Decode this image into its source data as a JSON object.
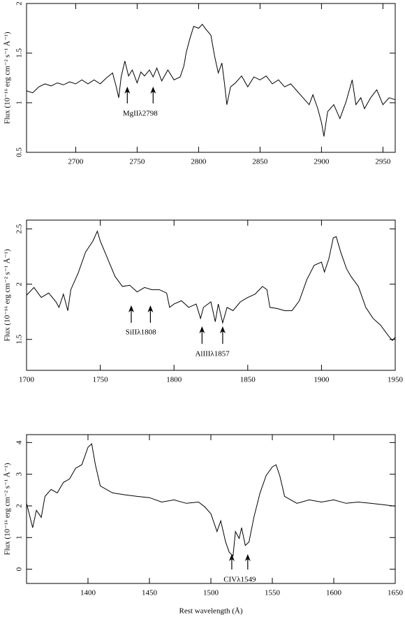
{
  "chart_data": [
    {
      "type": "line",
      "color": "#000000",
      "ylabel": "Flux (10⁻¹⁶ erg cm⁻² s⁻¹ Å⁻¹)",
      "xlim": [
        2660,
        2960
      ],
      "ylim": [
        0.5,
        2
      ],
      "xticks": [
        2700,
        2750,
        2800,
        2850,
        2900,
        2950
      ],
      "yticks": [
        0.5,
        1,
        1.5,
        2
      ],
      "x": [
        2660,
        2665,
        2670,
        2675,
        2680,
        2685,
        2690,
        2695,
        2700,
        2705,
        2710,
        2715,
        2720,
        2725,
        2730,
        2733,
        2735,
        2737,
        2740,
        2743,
        2746,
        2750,
        2753,
        2756,
        2760,
        2763,
        2766,
        2770,
        2775,
        2780,
        2785,
        2788,
        2790,
        2793,
        2796,
        2800,
        2803,
        2806,
        2810,
        2813,
        2816,
        2819,
        2821,
        2823,
        2826,
        2830,
        2835,
        2840,
        2845,
        2850,
        2855,
        2860,
        2865,
        2870,
        2875,
        2880,
        2885,
        2890,
        2893,
        2897,
        2900,
        2902,
        2905,
        2910,
        2915,
        2920,
        2925,
        2928,
        2932,
        2935,
        2940,
        2945,
        2950,
        2955,
        2960
      ],
      "values": [
        1.12,
        1.1,
        1.16,
        1.19,
        1.17,
        1.2,
        1.18,
        1.21,
        1.19,
        1.23,
        1.19,
        1.23,
        1.19,
        1.25,
        1.3,
        1.16,
        1.05,
        1.26,
        1.42,
        1.27,
        1.33,
        1.2,
        1.31,
        1.27,
        1.33,
        1.26,
        1.35,
        1.22,
        1.33,
        1.23,
        1.26,
        1.37,
        1.51,
        1.65,
        1.77,
        1.75,
        1.79,
        1.74,
        1.68,
        1.47,
        1.3,
        1.4,
        1.2,
        0.98,
        1.16,
        1.2,
        1.27,
        1.16,
        1.26,
        1.23,
        1.27,
        1.19,
        1.23,
        1.16,
        1.19,
        1.12,
        1.05,
        0.98,
        1.08,
        0.94,
        0.8,
        0.66,
        0.91,
        0.98,
        0.84,
        1.01,
        1.23,
        0.98,
        1.05,
        0.94,
        1.05,
        1.13,
        0.98,
        1.05,
        1.03
      ],
      "annotations": [
        {
          "text": "MgIIλ2798",
          "x": [
            2742,
            2763
          ]
        }
      ]
    },
    {
      "type": "line",
      "color": "#000000",
      "ylabel": "Flux (10⁻¹⁶ erg cm⁻² s⁻¹ Å⁻¹)",
      "xlim": [
        1700,
        1950
      ],
      "ylim": [
        1.22,
        2.58
      ],
      "xticks": [
        1700,
        1750,
        1800,
        1850,
        1900,
        1950
      ],
      "yticks": [
        1.5,
        2,
        2.5
      ],
      "x": [
        1700,
        1705,
        1710,
        1715,
        1720,
        1722,
        1725,
        1728,
        1730,
        1735,
        1740,
        1745,
        1748,
        1750,
        1755,
        1760,
        1765,
        1770,
        1775,
        1780,
        1785,
        1790,
        1795,
        1797,
        1800,
        1805,
        1810,
        1815,
        1818,
        1820,
        1825,
        1828,
        1830,
        1833,
        1836,
        1840,
        1845,
        1850,
        1855,
        1860,
        1863,
        1865,
        1870,
        1875,
        1880,
        1885,
        1890,
        1895,
        1900,
        1902,
        1905,
        1908,
        1910,
        1913,
        1917,
        1920,
        1925,
        1930,
        1935,
        1940,
        1945,
        1948,
        1950
      ],
      "values": [
        1.9,
        1.97,
        1.88,
        1.92,
        1.84,
        1.79,
        1.91,
        1.76,
        1.95,
        2.1,
        2.29,
        2.39,
        2.48,
        2.39,
        2.23,
        2.07,
        1.98,
        1.99,
        1.93,
        1.97,
        1.95,
        1.95,
        1.92,
        1.79,
        1.82,
        1.85,
        1.79,
        1.82,
        1.69,
        1.79,
        1.84,
        1.66,
        1.82,
        1.65,
        1.79,
        1.76,
        1.84,
        1.88,
        1.91,
        1.98,
        1.95,
        1.79,
        1.78,
        1.76,
        1.76,
        1.85,
        2.04,
        2.17,
        2.2,
        2.11,
        2.23,
        2.42,
        2.43,
        2.29,
        2.14,
        2.07,
        1.98,
        1.79,
        1.69,
        1.63,
        1.54,
        1.49,
        1.52
      ],
      "annotations": [
        {
          "text": "SiIIλ1808",
          "x": [
            1771,
            1784
          ]
        },
        {
          "text": "AlIIIλ1857",
          "x": [
            1819,
            1833
          ]
        }
      ]
    },
    {
      "type": "line",
      "color": "#000000",
      "ylabel": "Flux (10⁻¹⁶ erg cm⁻² s⁻¹ Å⁻¹)",
      "xlabel": "Rest wavelength (Å)",
      "xlim": [
        1350,
        1650
      ],
      "ylim": [
        -0.45,
        4.25
      ],
      "xticks": [
        1400,
        1450,
        1500,
        1550,
        1600,
        1650
      ],
      "yticks": [
        0,
        1,
        2,
        3,
        4
      ],
      "x": [
        1350,
        1355,
        1358,
        1362,
        1365,
        1370,
        1375,
        1380,
        1385,
        1390,
        1395,
        1400,
        1403,
        1406,
        1410,
        1415,
        1420,
        1430,
        1440,
        1450,
        1460,
        1470,
        1480,
        1490,
        1495,
        1500,
        1505,
        1508,
        1512,
        1515,
        1518,
        1520,
        1523,
        1525,
        1528,
        1531,
        1535,
        1540,
        1545,
        1550,
        1553,
        1556,
        1560,
        1570,
        1580,
        1590,
        1600,
        1610,
        1620,
        1630,
        1640,
        1650
      ],
      "values": [
        2.08,
        1.31,
        1.86,
        1.64,
        2.3,
        2.52,
        2.41,
        2.74,
        2.85,
        3.19,
        3.3,
        3.85,
        3.96,
        3.3,
        2.63,
        2.52,
        2.41,
        2.35,
        2.3,
        2.26,
        2.12,
        2.19,
        2.08,
        2.12,
        1.97,
        1.75,
        1.19,
        1.53,
        0.86,
        0.53,
        0.42,
        1.19,
        0.97,
        1.31,
        0.75,
        0.86,
        1.64,
        2.41,
        2.96,
        3.23,
        3.3,
        2.96,
        2.3,
        2.08,
        2.19,
        2.12,
        2.19,
        2.08,
        2.12,
        2.08,
        2.04,
        1.99
      ],
      "annotations": [
        {
          "text": "CIVλ1549",
          "x": [
            1517,
            1530
          ]
        }
      ]
    }
  ]
}
